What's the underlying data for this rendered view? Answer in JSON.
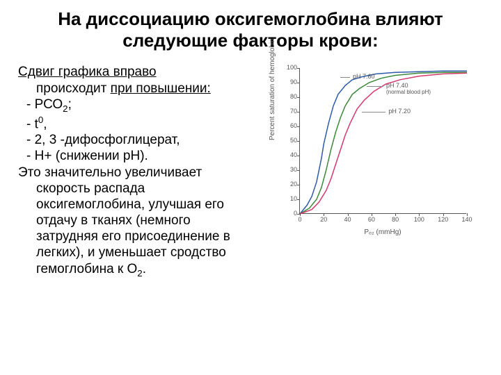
{
  "title_line1": "На диссоциацию оксигемоглобина влияют",
  "title_line2": "следующие факторы крови:",
  "text": {
    "heading_u": "Сдвиг графика вправо",
    "heading_cont1": "происходит ",
    "heading_cont1_u": "при повышении:",
    "b1_pre": "- РСО",
    "b1_sub": "2",
    "b1_post": ";",
    "b2_pre": "- t",
    "b2_sup": "0",
    "b2_post": ",",
    "b3": "- 2, 3 -дифосфоглицерат,",
    "b4": "-  H+ (снижении рН).",
    "p1": "Это значительно увеличивает",
    "p2": "скорость распада",
    "p3": "оксигемоглобина, улучшая его",
    "p4": "отдачу в тканях (немного",
    "p5": "затрудняя его присоединение в",
    "p6": "легких), и уменьшает сродство",
    "p7_pre": "гемоглобина к О",
    "p7_sub": "2",
    "p7_post": "."
  },
  "chart": {
    "type": "line",
    "xlim": [
      0,
      140
    ],
    "ylim": [
      0,
      100
    ],
    "xtick_step": 20,
    "ytick_step": 10,
    "xlabel": "Pₒ₂ (mmHg)",
    "ylabel": "Percent saturation of hemoglobin",
    "background_color": "#ffffff",
    "axis_color": "#555555",
    "tick_fontsize": 9,
    "label_fontsize": 10,
    "curve_label_fontsize": 9,
    "line_width": 1.5,
    "series": [
      {
        "name": "pH 7.60",
        "color": "#2e5aa8",
        "points": [
          [
            0,
            0
          ],
          [
            6,
            6
          ],
          [
            10,
            12
          ],
          [
            14,
            22
          ],
          [
            18,
            38
          ],
          [
            20,
            48
          ],
          [
            24,
            62
          ],
          [
            28,
            74
          ],
          [
            32,
            82
          ],
          [
            38,
            88
          ],
          [
            44,
            92
          ],
          [
            52,
            94
          ],
          [
            64,
            96
          ],
          [
            80,
            97
          ],
          [
            100,
            97.5
          ],
          [
            120,
            98
          ],
          [
            140,
            98
          ]
        ],
        "label_x": 42,
        "label_y": 94,
        "line_to_x": 34
      },
      {
        "name": "pH 7.40",
        "sub": "(normal blood pH)",
        "color": "#3a8a3a",
        "points": [
          [
            0,
            0
          ],
          [
            8,
            4
          ],
          [
            14,
            10
          ],
          [
            18,
            18
          ],
          [
            22,
            30
          ],
          [
            26,
            44
          ],
          [
            30,
            56
          ],
          [
            34,
            66
          ],
          [
            38,
            74
          ],
          [
            44,
            82
          ],
          [
            50,
            86
          ],
          [
            58,
            90
          ],
          [
            68,
            93
          ],
          [
            80,
            95
          ],
          [
            100,
            96.5
          ],
          [
            120,
            97
          ],
          [
            140,
            97
          ]
        ],
        "label_x": 70,
        "label_y": 88,
        "line_to_x": 56
      },
      {
        "name": "pH 7.20",
        "color": "#d43a6a",
        "points": [
          [
            0,
            0
          ],
          [
            10,
            3
          ],
          [
            16,
            8
          ],
          [
            22,
            16
          ],
          [
            26,
            24
          ],
          [
            30,
            34
          ],
          [
            34,
            44
          ],
          [
            38,
            54
          ],
          [
            42,
            62
          ],
          [
            48,
            72
          ],
          [
            54,
            78
          ],
          [
            62,
            84
          ],
          [
            72,
            89
          ],
          [
            84,
            92
          ],
          [
            100,
            94.5
          ],
          [
            120,
            96
          ],
          [
            140,
            96.5
          ]
        ],
        "label_x": 72,
        "label_y": 70,
        "line_to_x": 52
      }
    ]
  }
}
